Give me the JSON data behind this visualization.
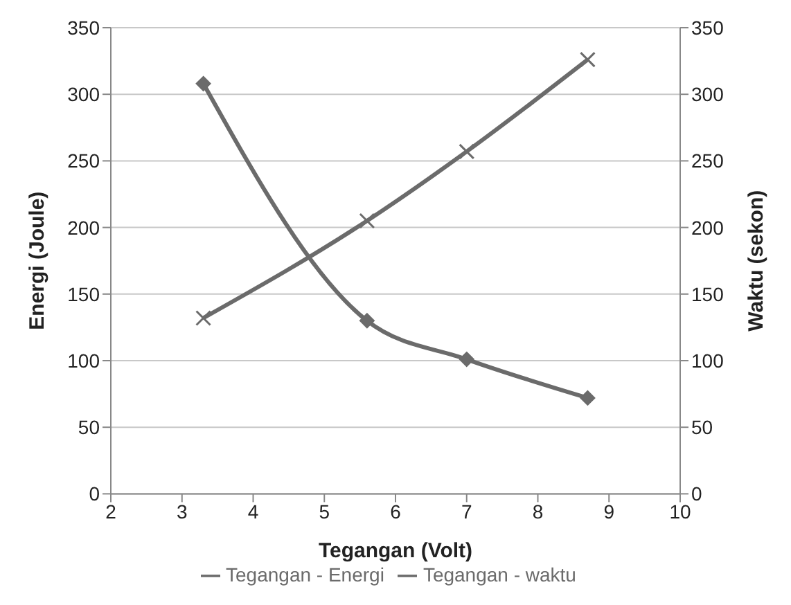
{
  "chart_data": {
    "type": "line",
    "xlabel": "Tegangan (Volt)",
    "ylabel": "Energi (Joule)",
    "y2label": "Waktu (sekon)",
    "x": [
      3.3,
      5.6,
      7,
      8.7
    ],
    "series": [
      {
        "name": "Tegangan - Energi",
        "color": "#6b6b6b",
        "marker": "cross",
        "values": [
          132,
          205,
          257,
          326
        ]
      },
      {
        "name": "Tegangan - waktu",
        "color": "#6b6b6b",
        "marker": "diamond",
        "axis": "y2",
        "values": [
          308,
          130,
          101,
          72
        ]
      }
    ],
    "xlim": [
      2,
      10
    ],
    "xticks": [
      2,
      3,
      4,
      5,
      6,
      7,
      8,
      9,
      10
    ],
    "ylim": [
      0,
      350
    ],
    "yticks": [
      0,
      50,
      100,
      150,
      200,
      250,
      300,
      350
    ],
    "y2lim": [
      0,
      350
    ],
    "y2ticks": [
      0,
      50,
      100,
      150,
      200,
      250,
      300,
      350
    ],
    "grid": "y",
    "legend": "bottom",
    "line_style": "solid"
  }
}
